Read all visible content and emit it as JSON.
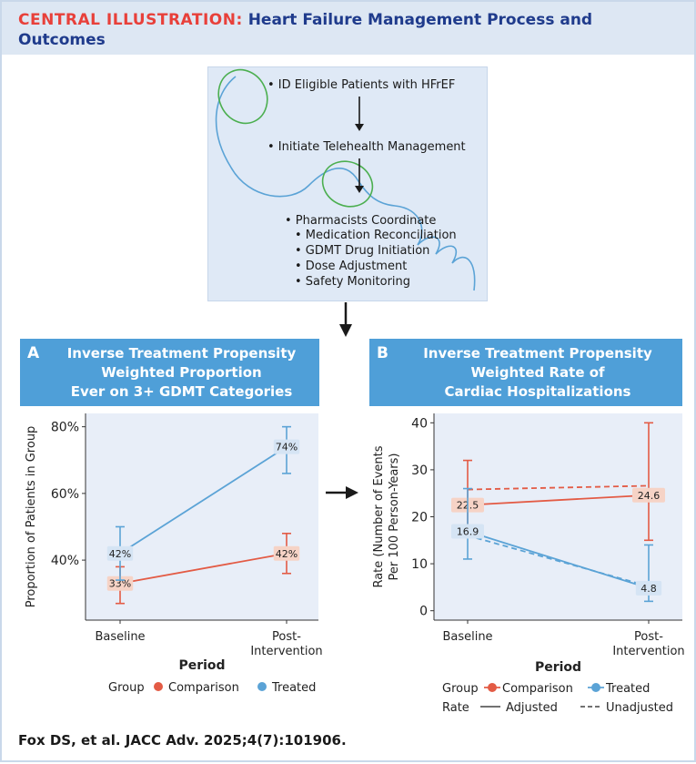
{
  "title": {
    "lead": "CENTRAL ILLUSTRATION:",
    "rest": "Heart Failure Management Process and",
    "line2": "Outcomes"
  },
  "process": {
    "step1": "• ID Eligible Patients with HFrEF",
    "step2": "• Initiate Telehealth Management",
    "step3": "• Pharmacists Coordinate",
    "substeps": [
      "• Medication Reconciliation",
      "• GDMT Drug Initiation",
      "• Dose Adjustment",
      "• Safety Monitoring"
    ]
  },
  "colors": {
    "comparison": "#e35b45",
    "treated": "#5ba3d6",
    "header": "#4f9fd8",
    "plot_bg": "#e8eef8",
    "coil": "#5ba3d6",
    "loop": "#4caf50"
  },
  "chart_data": [
    {
      "panel": "A",
      "type": "line",
      "title": "Inverse Treatment Propensity Weighted Proportion Ever on 3+ GDMT Categories",
      "title_lines": [
        "Inverse Treatment Propensity",
        "Weighted Proportion",
        "Ever on 3+ GDMT Categories"
      ],
      "xlabel": "Period",
      "ylabel": "Proportion of Patients in Group",
      "categories": [
        "Baseline",
        "Post-\nIntervention"
      ],
      "cat_lines": [
        [
          "Baseline"
        ],
        [
          "Post-",
          "Intervention"
        ]
      ],
      "ylim": [
        22,
        84
      ],
      "yticks": [
        40,
        60,
        80
      ],
      "ytick_labels": [
        "40%",
        "60%",
        "80%"
      ],
      "series": [
        {
          "name": "Comparison",
          "values": [
            33,
            42
          ],
          "ci": [
            [
              27,
              38
            ],
            [
              36,
              48
            ]
          ],
          "labels": [
            "33%",
            "42%"
          ]
        },
        {
          "name": "Treated",
          "values": [
            42,
            74
          ],
          "ci": [
            [
              34,
              50
            ],
            [
              66,
              80
            ]
          ],
          "labels": [
            "42%",
            "74%"
          ]
        }
      ],
      "legend": {
        "title": "Group",
        "items": [
          "Comparison",
          "Treated"
        ]
      }
    },
    {
      "panel": "B",
      "type": "line",
      "title": "Inverse Treatment Propensity Weighted Rate of Cardiac Hospitalizations",
      "title_lines": [
        "Inverse Treatment Propensity",
        "Weighted Rate of",
        "Cardiac Hospitalizations"
      ],
      "xlabel": "Period",
      "ylabel": "Rate (Number of Events Per 100 Person-Years)",
      "ylabel_lines": [
        "Rate (Number of Events",
        "Per 100 Person-Years)"
      ],
      "categories": [
        "Baseline",
        "Post-\nIntervention"
      ],
      "cat_lines": [
        [
          "Baseline"
        ],
        [
          "Post-",
          "Intervention"
        ]
      ],
      "ylim": [
        -2,
        42
      ],
      "yticks": [
        0,
        10,
        20,
        30,
        40
      ],
      "ytick_labels": [
        "0",
        "10",
        "20",
        "30",
        "40"
      ],
      "series": [
        {
          "name": "Comparison",
          "style": "Adjusted",
          "values": [
            22.5,
            24.6
          ],
          "ci": [
            [
              16,
              32
            ],
            [
              15,
              40
            ]
          ],
          "labels": [
            "22.5",
            "24.6"
          ]
        },
        {
          "name": "Treated",
          "style": "Adjusted",
          "values": [
            16.9,
            4.8
          ],
          "ci": [
            [
              11,
              26
            ],
            [
              2,
              14
            ]
          ],
          "labels": [
            "16.9",
            "4.8"
          ]
        },
        {
          "name": "Comparison",
          "style": "Unadjusted",
          "values": [
            25.8,
            26.6
          ]
        },
        {
          "name": "Treated",
          "style": "Unadjusted",
          "values": [
            16,
            5.2
          ]
        }
      ],
      "legend": {
        "title": "Group",
        "items": [
          "Comparison",
          "Treated"
        ],
        "title2": "Rate",
        "items2": [
          "Adjusted",
          "Unadjusted"
        ]
      }
    }
  ],
  "footer": "Fox DS, et al. JACC Adv. 2025;4(7):101906."
}
